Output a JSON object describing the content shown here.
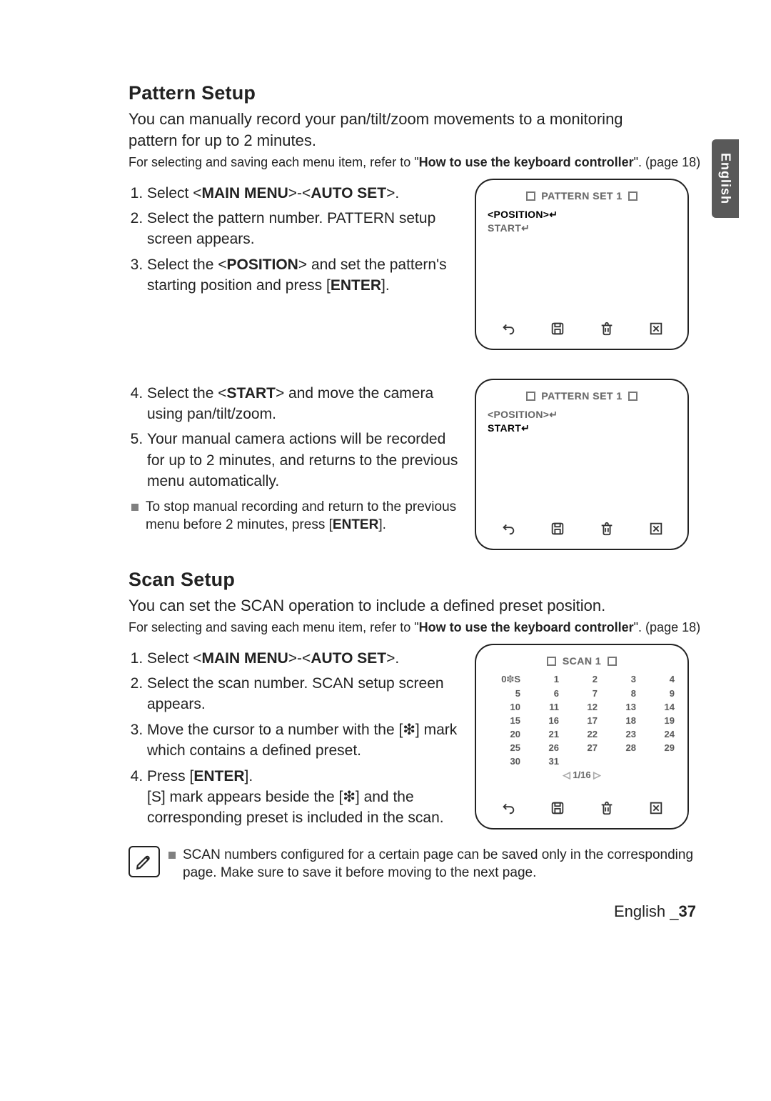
{
  "side_tab": {
    "label": "English"
  },
  "pattern": {
    "title": "Pattern Setup",
    "intro": "You can manually record your pan/tilt/zoom movements to a monitoring pattern for up to 2 minutes.",
    "ref_prefix": "For selecting and saving each menu item, refer to \"",
    "ref_bold": "How to use the keyboard controller",
    "ref_suffix": "\". (page 18)",
    "steps_a": [
      "Select <<b>MAIN MENU</b>>-<<b>AUTO SET</b>>.",
      "Select the pattern number. PATTERN setup screen appears.",
      "Select the <<b>POSITION</b>> and set the pattern's starting position and press [<b>ENTER</b>]."
    ],
    "steps_b": [
      "Select the <<b>START</b>> and move the camera using pan/tilt/zoom.",
      "Your manual camera actions will be recorded for up to 2 minutes, and returns to the previous menu automatically."
    ],
    "sub_bullet": "To stop manual recording and return to the previous menu before 2 minutes, press [<b>ENTER</b>].",
    "screen1": {
      "title": "PATTERN SET 1",
      "line1": "<POSITION>↵",
      "line1_active": true,
      "line2": "START↵",
      "line2_active": false
    },
    "screen2": {
      "title": "PATTERN SET 1",
      "line1": "<POSITION>↵",
      "line1_active": false,
      "line2": "START↵",
      "line2_active": true
    }
  },
  "scan": {
    "title": "Scan Setup",
    "intro": "You can set the SCAN operation to include a defined preset position.",
    "ref_prefix": "For selecting and saving each menu item, refer to \"",
    "ref_bold": "How to use the keyboard controller",
    "ref_suffix": "\". (page 18)",
    "steps": [
      "Select <<b>MAIN MENU</b>>-<<b>AUTO SET</b>>.",
      "Select the scan number. SCAN setup screen appears.",
      "Move the cursor to a number with the [❇] mark which contains a defined preset.",
      "Press [<b>ENTER</b>].<br>[S] mark appears beside the [❇] and the corresponding preset is included in the scan."
    ],
    "screen": {
      "title": "SCAN 1",
      "first_cell": "0❇S",
      "grid": [
        [
          "0❇S",
          "1",
          "2",
          "3",
          "4"
        ],
        [
          "5",
          "6",
          "7",
          "8",
          "9"
        ],
        [
          "10",
          "11",
          "12",
          "13",
          "14"
        ],
        [
          "15",
          "16",
          "17",
          "18",
          "19"
        ],
        [
          "20",
          "21",
          "22",
          "23",
          "24"
        ],
        [
          "25",
          "26",
          "27",
          "28",
          "29"
        ],
        [
          "30",
          "31",
          "",
          "",
          ""
        ]
      ],
      "pager": "◁ 1/16 ▷"
    },
    "note": "SCAN numbers configured for a certain page can be saved only in the corresponding page. Make sure to save it before moving to the next page."
  },
  "footer": {
    "lang": "English",
    "page": "37"
  },
  "colors": {
    "text": "#222222",
    "outline_gray": "#666666",
    "side_tab_bg": "#595959",
    "bullet_gray": "#808080"
  }
}
